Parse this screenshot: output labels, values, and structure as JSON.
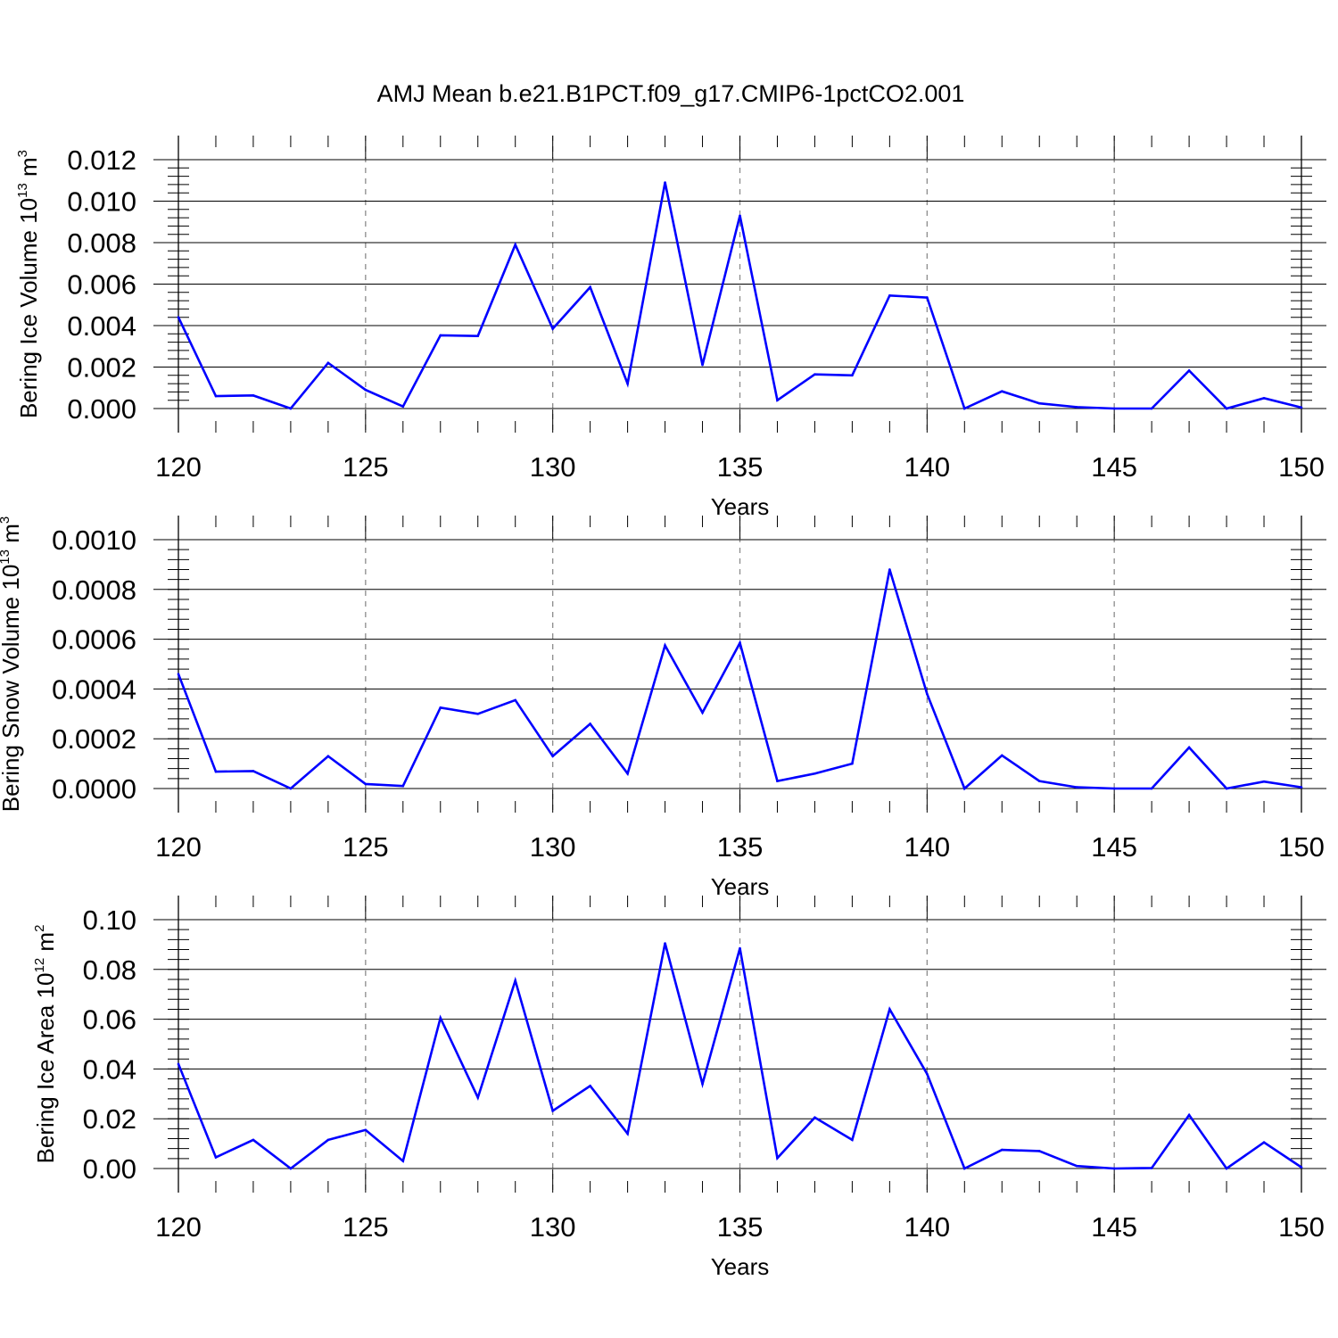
{
  "chart_data": {
    "title": "AMJ Mean b.e21.B1PCT.f09_g17.CMIP6-1pctCO2.001",
    "colors": {
      "line": "#0000ff",
      "axis": "#000000",
      "grid": "#8c8c8c"
    },
    "panels": [
      {
        "type": "line",
        "xlabel": "Years",
        "ylabel": {
          "text": "Bering Ice Volume 10",
          "exponent": "13",
          "unit": " m",
          "unit_exponent": "3"
        },
        "xlim": [
          120,
          150
        ],
        "ylim": [
          0,
          0.012
        ],
        "x_ticks": [
          120,
          125,
          130,
          135,
          140,
          145,
          150
        ],
        "x_tick_labels": [
          "120",
          "125",
          "130",
          "135",
          "140",
          "145",
          "150"
        ],
        "y_ticks": [
          0,
          0.002,
          0.004,
          0.006,
          0.008,
          0.01,
          0.012
        ],
        "y_tick_labels": [
          "0.000",
          "0.002",
          "0.004",
          "0.006",
          "0.008",
          "0.010",
          "0.012"
        ],
        "grid": "vertical dashed at major x ticks",
        "series": [
          {
            "x": [
              120,
              121,
              122,
              123,
              124,
              125,
              126,
              127,
              128,
              129,
              130,
              131,
              132,
              133,
              134,
              135,
              136,
              137,
              138,
              139,
              140,
              141,
              142,
              143,
              144,
              145,
              146,
              147,
              148,
              149,
              150
            ],
            "values": [
              0.0044,
              0.0006,
              0.00063,
              0.0,
              0.0022,
              0.0009,
              0.0001,
              0.00353,
              0.0035,
              0.0079,
              0.00385,
              0.00585,
              0.0012,
              0.0109,
              0.0021,
              0.0093,
              0.0004,
              0.00165,
              0.0016,
              0.00545,
              0.00535,
              0.0,
              0.00083,
              0.00025,
              7e-05,
              0.0,
              0.0,
              0.00183,
              0.0,
              0.0005,
              5e-05
            ]
          }
        ]
      },
      {
        "type": "line",
        "xlabel": "Years",
        "ylabel": {
          "text": "Bering Snow Volume 10",
          "exponent": "13",
          "unit": " m",
          "unit_exponent": "3"
        },
        "xlim": [
          120,
          150
        ],
        "ylim": [
          0,
          0.001
        ],
        "x_ticks": [
          120,
          125,
          130,
          135,
          140,
          145,
          150
        ],
        "x_tick_labels": [
          "120",
          "125",
          "130",
          "135",
          "140",
          "145",
          "150"
        ],
        "y_ticks": [
          0,
          0.0002,
          0.0004,
          0.0006,
          0.0008,
          0.001
        ],
        "y_tick_labels": [
          "0.0000",
          "0.0002",
          "0.0004",
          "0.0006",
          "0.0008",
          "0.0010"
        ],
        "grid": "vertical dashed at major x ticks",
        "series": [
          {
            "x": [
              120,
              121,
              122,
              123,
              124,
              125,
              126,
              127,
              128,
              129,
              130,
              131,
              132,
              133,
              134,
              135,
              136,
              137,
              138,
              139,
              140,
              141,
              142,
              143,
              144,
              145,
              146,
              147,
              148,
              149,
              150
            ],
            "values": [
              0.00046,
              6.8e-05,
              7e-05,
              0.0,
              0.00013,
              1.8e-05,
              1e-05,
              0.000325,
              0.0003,
              0.000355,
              0.00013,
              0.00026,
              6e-05,
              0.000575,
              0.000305,
              0.000585,
              3e-05,
              6e-05,
              0.0001,
              0.00088,
              0.00038,
              0.0,
              0.000133,
              3e-05,
              5e-06,
              0.0,
              0.0,
              0.000165,
              0.0,
              2.8e-05,
              5e-06
            ]
          }
        ]
      },
      {
        "type": "line",
        "xlabel": "Years",
        "ylabel": {
          "text": "Bering Ice Area 10",
          "exponent": "12",
          "unit": " m",
          "unit_exponent": "2"
        },
        "xlim": [
          120,
          150
        ],
        "ylim": [
          0,
          0.1
        ],
        "x_ticks": [
          120,
          125,
          130,
          135,
          140,
          145,
          150
        ],
        "x_tick_labels": [
          "120",
          "125",
          "130",
          "135",
          "140",
          "145",
          "150"
        ],
        "y_ticks": [
          0,
          0.02,
          0.04,
          0.06,
          0.08,
          0.1
        ],
        "y_tick_labels": [
          "0.00",
          "0.02",
          "0.04",
          "0.06",
          "0.08",
          "0.10"
        ],
        "grid": "vertical dashed at major x ticks",
        "series": [
          {
            "x": [
              120,
              121,
              122,
              123,
              124,
              125,
              126,
              127,
              128,
              129,
              130,
              131,
              132,
              133,
              134,
              135,
              136,
              137,
              138,
              139,
              140,
              141,
              142,
              143,
              144,
              145,
              146,
              147,
              148,
              149,
              150
            ],
            "values": [
              0.042,
              0.0045,
              0.0115,
              0.0,
              0.0115,
              0.0155,
              0.003,
              0.0605,
              0.0285,
              0.0755,
              0.0232,
              0.0332,
              0.014,
              0.0905,
              0.034,
              0.0885,
              0.0042,
              0.0205,
              0.0115,
              0.064,
              0.038,
              0.0,
              0.0075,
              0.007,
              0.001,
              0.0,
              0.0002,
              0.0215,
              0.0,
              0.0105,
              0.0005
            ]
          }
        ]
      }
    ]
  }
}
